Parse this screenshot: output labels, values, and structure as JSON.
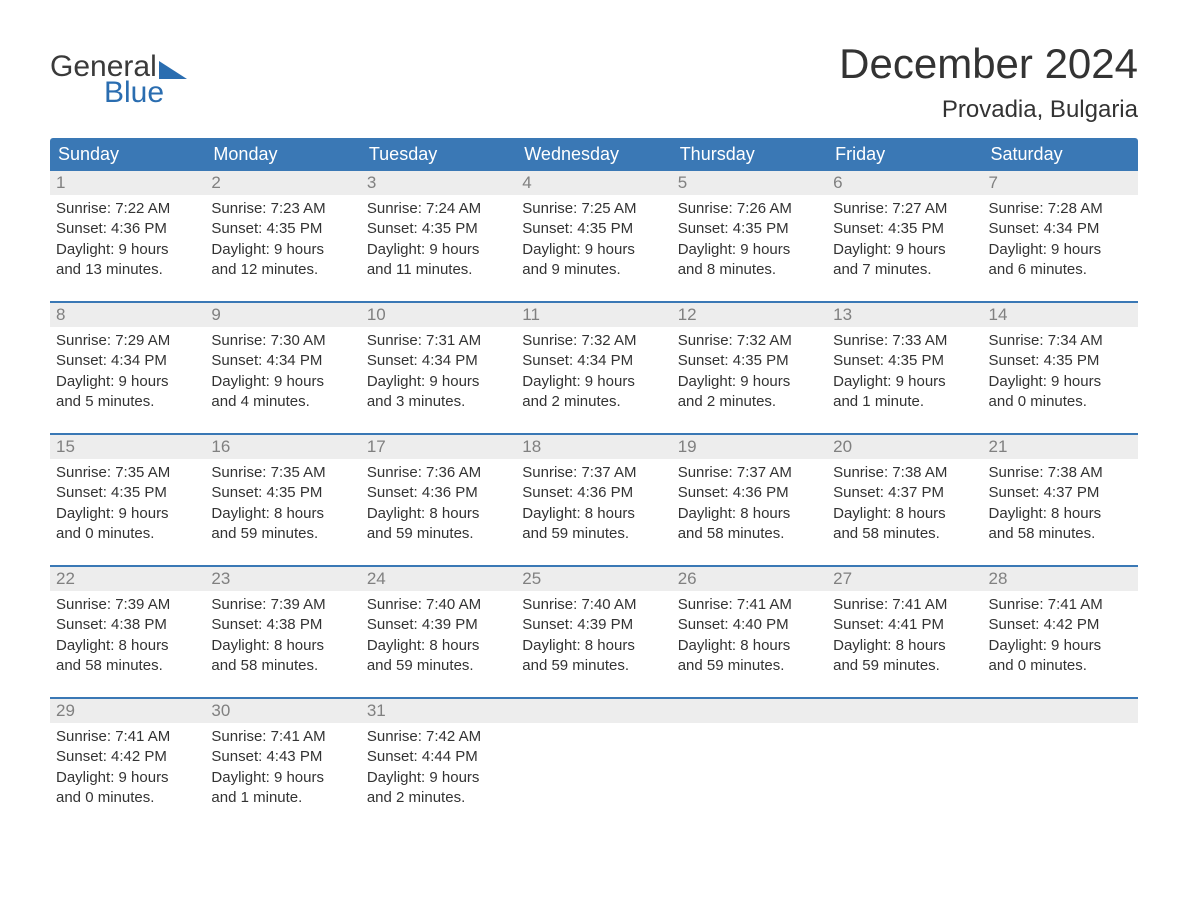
{
  "brand": {
    "word1": "General",
    "word2": "Blue",
    "color": "#2a6db0"
  },
  "title": "December 2024",
  "location": "Provadia, Bulgaria",
  "colors": {
    "header_bg": "#3a78b5",
    "header_text": "#ffffff",
    "daynum_bg": "#ededed",
    "daynum_text": "#808080",
    "body_text": "#333333",
    "rule": "#3a78b5",
    "page_bg": "#ffffff"
  },
  "fonts": {
    "title_pt": 42,
    "location_pt": 24,
    "dayhead_pt": 18,
    "daynum_pt": 17,
    "body_pt": 15
  },
  "day_headers": [
    "Sunday",
    "Monday",
    "Tuesday",
    "Wednesday",
    "Thursday",
    "Friday",
    "Saturday"
  ],
  "weeks": [
    [
      {
        "n": "1",
        "sunrise": "Sunrise: 7:22 AM",
        "sunset": "Sunset: 4:36 PM",
        "d1": "Daylight: 9 hours",
        "d2": "and 13 minutes."
      },
      {
        "n": "2",
        "sunrise": "Sunrise: 7:23 AM",
        "sunset": "Sunset: 4:35 PM",
        "d1": "Daylight: 9 hours",
        "d2": "and 12 minutes."
      },
      {
        "n": "3",
        "sunrise": "Sunrise: 7:24 AM",
        "sunset": "Sunset: 4:35 PM",
        "d1": "Daylight: 9 hours",
        "d2": "and 11 minutes."
      },
      {
        "n": "4",
        "sunrise": "Sunrise: 7:25 AM",
        "sunset": "Sunset: 4:35 PM",
        "d1": "Daylight: 9 hours",
        "d2": "and 9 minutes."
      },
      {
        "n": "5",
        "sunrise": "Sunrise: 7:26 AM",
        "sunset": "Sunset: 4:35 PM",
        "d1": "Daylight: 9 hours",
        "d2": "and 8 minutes."
      },
      {
        "n": "6",
        "sunrise": "Sunrise: 7:27 AM",
        "sunset": "Sunset: 4:35 PM",
        "d1": "Daylight: 9 hours",
        "d2": "and 7 minutes."
      },
      {
        "n": "7",
        "sunrise": "Sunrise: 7:28 AM",
        "sunset": "Sunset: 4:34 PM",
        "d1": "Daylight: 9 hours",
        "d2": "and 6 minutes."
      }
    ],
    [
      {
        "n": "8",
        "sunrise": "Sunrise: 7:29 AM",
        "sunset": "Sunset: 4:34 PM",
        "d1": "Daylight: 9 hours",
        "d2": "and 5 minutes."
      },
      {
        "n": "9",
        "sunrise": "Sunrise: 7:30 AM",
        "sunset": "Sunset: 4:34 PM",
        "d1": "Daylight: 9 hours",
        "d2": "and 4 minutes."
      },
      {
        "n": "10",
        "sunrise": "Sunrise: 7:31 AM",
        "sunset": "Sunset: 4:34 PM",
        "d1": "Daylight: 9 hours",
        "d2": "and 3 minutes."
      },
      {
        "n": "11",
        "sunrise": "Sunrise: 7:32 AM",
        "sunset": "Sunset: 4:34 PM",
        "d1": "Daylight: 9 hours",
        "d2": "and 2 minutes."
      },
      {
        "n": "12",
        "sunrise": "Sunrise: 7:32 AM",
        "sunset": "Sunset: 4:35 PM",
        "d1": "Daylight: 9 hours",
        "d2": "and 2 minutes."
      },
      {
        "n": "13",
        "sunrise": "Sunrise: 7:33 AM",
        "sunset": "Sunset: 4:35 PM",
        "d1": "Daylight: 9 hours",
        "d2": "and 1 minute."
      },
      {
        "n": "14",
        "sunrise": "Sunrise: 7:34 AM",
        "sunset": "Sunset: 4:35 PM",
        "d1": "Daylight: 9 hours",
        "d2": "and 0 minutes."
      }
    ],
    [
      {
        "n": "15",
        "sunrise": "Sunrise: 7:35 AM",
        "sunset": "Sunset: 4:35 PM",
        "d1": "Daylight: 9 hours",
        "d2": "and 0 minutes."
      },
      {
        "n": "16",
        "sunrise": "Sunrise: 7:35 AM",
        "sunset": "Sunset: 4:35 PM",
        "d1": "Daylight: 8 hours",
        "d2": "and 59 minutes."
      },
      {
        "n": "17",
        "sunrise": "Sunrise: 7:36 AM",
        "sunset": "Sunset: 4:36 PM",
        "d1": "Daylight: 8 hours",
        "d2": "and 59 minutes."
      },
      {
        "n": "18",
        "sunrise": "Sunrise: 7:37 AM",
        "sunset": "Sunset: 4:36 PM",
        "d1": "Daylight: 8 hours",
        "d2": "and 59 minutes."
      },
      {
        "n": "19",
        "sunrise": "Sunrise: 7:37 AM",
        "sunset": "Sunset: 4:36 PM",
        "d1": "Daylight: 8 hours",
        "d2": "and 58 minutes."
      },
      {
        "n": "20",
        "sunrise": "Sunrise: 7:38 AM",
        "sunset": "Sunset: 4:37 PM",
        "d1": "Daylight: 8 hours",
        "d2": "and 58 minutes."
      },
      {
        "n": "21",
        "sunrise": "Sunrise: 7:38 AM",
        "sunset": "Sunset: 4:37 PM",
        "d1": "Daylight: 8 hours",
        "d2": "and 58 minutes."
      }
    ],
    [
      {
        "n": "22",
        "sunrise": "Sunrise: 7:39 AM",
        "sunset": "Sunset: 4:38 PM",
        "d1": "Daylight: 8 hours",
        "d2": "and 58 minutes."
      },
      {
        "n": "23",
        "sunrise": "Sunrise: 7:39 AM",
        "sunset": "Sunset: 4:38 PM",
        "d1": "Daylight: 8 hours",
        "d2": "and 58 minutes."
      },
      {
        "n": "24",
        "sunrise": "Sunrise: 7:40 AM",
        "sunset": "Sunset: 4:39 PM",
        "d1": "Daylight: 8 hours",
        "d2": "and 59 minutes."
      },
      {
        "n": "25",
        "sunrise": "Sunrise: 7:40 AM",
        "sunset": "Sunset: 4:39 PM",
        "d1": "Daylight: 8 hours",
        "d2": "and 59 minutes."
      },
      {
        "n": "26",
        "sunrise": "Sunrise: 7:41 AM",
        "sunset": "Sunset: 4:40 PM",
        "d1": "Daylight: 8 hours",
        "d2": "and 59 minutes."
      },
      {
        "n": "27",
        "sunrise": "Sunrise: 7:41 AM",
        "sunset": "Sunset: 4:41 PM",
        "d1": "Daylight: 8 hours",
        "d2": "and 59 minutes."
      },
      {
        "n": "28",
        "sunrise": "Sunrise: 7:41 AM",
        "sunset": "Sunset: 4:42 PM",
        "d1": "Daylight: 9 hours",
        "d2": "and 0 minutes."
      }
    ],
    [
      {
        "n": "29",
        "sunrise": "Sunrise: 7:41 AM",
        "sunset": "Sunset: 4:42 PM",
        "d1": "Daylight: 9 hours",
        "d2": "and 0 minutes."
      },
      {
        "n": "30",
        "sunrise": "Sunrise: 7:41 AM",
        "sunset": "Sunset: 4:43 PM",
        "d1": "Daylight: 9 hours",
        "d2": "and 1 minute."
      },
      {
        "n": "31",
        "sunrise": "Sunrise: 7:42 AM",
        "sunset": "Sunset: 4:44 PM",
        "d1": "Daylight: 9 hours",
        "d2": "and 2 minutes."
      },
      {
        "empty": true
      },
      {
        "empty": true
      },
      {
        "empty": true
      },
      {
        "empty": true
      }
    ]
  ]
}
